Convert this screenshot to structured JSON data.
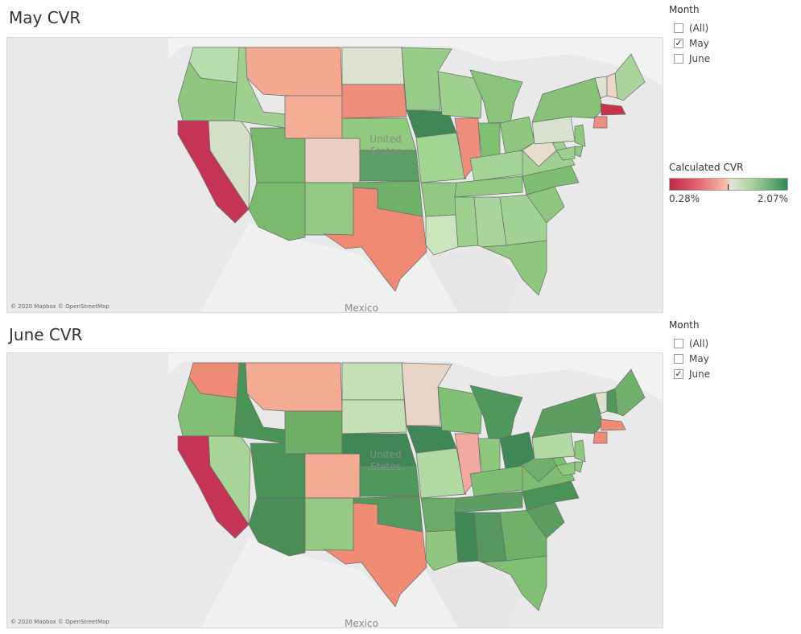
{
  "maps": [
    {
      "title": "May CVR",
      "credit": "© 2020 Mapbox © OpenStreetMap",
      "country_labels": [
        "United",
        "States",
        "Mexico"
      ],
      "state_colors": {
        "WA": "#b9dcae",
        "OR": "#8fc77e",
        "CA": "#c53356",
        "NV": "#d3dfc6",
        "ID": "#9fd08f",
        "MT": "#f4a890",
        "WY": "#f5ad96",
        "UT": "#78b86c",
        "AZ": "#7bba6d",
        "CO": "#eacfc2",
        "NM": "#93c982",
        "ND": "#dde2d3",
        "SD": "#ef8d7a",
        "NE": "#8fca7f",
        "KS": "#5a9f65",
        "OK": "#6fb06a",
        "TX": "#ef8a72",
        "MN": "#98cd89",
        "IA": "#3f8756",
        "MO": "#a2d493",
        "AR": "#92c982",
        "LA": "#cbe5bf",
        "WI": "#9fd08f",
        "IL": "#ef8c7c",
        "MI": "#89c47a",
        "IN": "#80c073",
        "OH": "#8fc77e",
        "KY": "#a4d495",
        "TN": "#91c981",
        "MS": "#9fd08f",
        "AL": "#a9d49b",
        "GA": "#a2d293",
        "FL": "#8fc77e",
        "SC": "#8ec67e",
        "NC": "#7fbd72",
        "VA": "#9fd08f",
        "WV": "#e6ddcc",
        "PA": "#d8e2cf",
        "NY": "#87c278",
        "VT": "#dde2d3",
        "NH": "#edd6c8",
        "ME": "#a9d49b",
        "MA": "#c7354c",
        "CT": "#ee8f82",
        "NJ": "#90c880",
        "DE": "#90c880",
        "MD": "#9cce8d"
      }
    },
    {
      "title": "June CVR",
      "credit": "© 2020 Mapbox © OpenStreetMap",
      "country_labels": [
        "United",
        "States",
        "Mexico"
      ],
      "state_colors": {
        "WA": "#ee8a75",
        "OR": "#82bf74",
        "CA": "#c53356",
        "NV": "#a7d497",
        "ID": "#4a9358",
        "MT": "#f4ab94",
        "WY": "#6fae67",
        "UT": "#4a9358",
        "AZ": "#4a8d5a",
        "CO": "#f4ab94",
        "NM": "#94ca83",
        "ND": "#c4e0b6",
        "SD": "#c4e0b6",
        "NE": "#3f8756",
        "KS": "#4f985d",
        "OK": "#55985f",
        "TX": "#ef8c73",
        "MN": "#e7d5c9",
        "IA": "#3f8756",
        "MO": "#b2d9a3",
        "AR": "#69ab68",
        "LA": "#8fc77e",
        "WI": "#80c073",
        "IL": "#f3a9a0",
        "MI": "#4f985d",
        "IN": "#8fc77e",
        "OH": "#3f8756",
        "KY": "#7fbd72",
        "TN": "#5c9e61",
        "MS": "#3f8756",
        "AL": "#55985f",
        "GA": "#6fb06a",
        "FL": "#80c073",
        "SC": "#5c9e61",
        "NC": "#4a9358",
        "VA": "#7fbd72",
        "WV": "#6fb06a",
        "PA": "#b2d9a3",
        "NY": "#5c9e61",
        "VT": "#d8e2cf",
        "NH": "#4f985d",
        "ME": "#6fb06a",
        "MA": "#ee8a75",
        "CT": "#ee8a75",
        "NJ": "#90c880",
        "DE": "#90c880",
        "MD": "#8fc77e"
      }
    }
  ],
  "filters": [
    {
      "title": "Month",
      "options": [
        {
          "label": "(All)",
          "checked": false
        },
        {
          "label": "May",
          "checked": true
        },
        {
          "label": "June",
          "checked": false
        }
      ]
    },
    {
      "title": "Month",
      "options": [
        {
          "label": "(All)",
          "checked": false
        },
        {
          "label": "May",
          "checked": false
        },
        {
          "label": "June",
          "checked": true
        }
      ]
    }
  ],
  "legend": {
    "title": "Calculated CVR",
    "min_label": "0.28%",
    "max_label": "2.07%"
  }
}
